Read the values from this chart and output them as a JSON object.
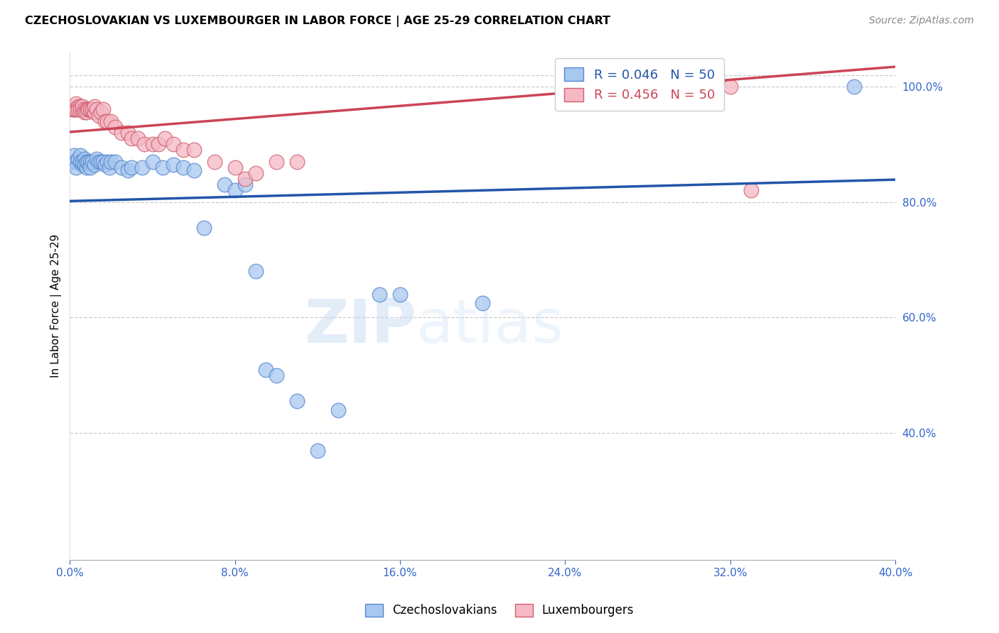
{
  "title": "CZECHOSLOVAKIAN VS LUXEMBOURGER IN LABOR FORCE | AGE 25-29 CORRELATION CHART",
  "source": "Source: ZipAtlas.com",
  "ylabel": "In Labor Force | Age 25-29",
  "legend_blue_label": "Czechoslovakians",
  "legend_pink_label": "Luxembourgers",
  "blue_R": 0.046,
  "blue_N": 50,
  "pink_R": 0.456,
  "pink_N": 50,
  "xlim": [
    0.0,
    0.4
  ],
  "ylim": [
    0.18,
    1.06
  ],
  "yticks": [
    0.4,
    0.6,
    0.8,
    1.0
  ],
  "xticks": [
    0.0,
    0.08,
    0.16,
    0.24,
    0.32,
    0.4
  ],
  "blue_color": "#A8C8F0",
  "pink_color": "#F5B8C4",
  "blue_edge_color": "#5588CC",
  "pink_edge_color": "#D06070",
  "blue_line_color": "#2255AA",
  "pink_line_color": "#CC4455",
  "watermark": "ZIPatlas",
  "background_color": "#ffffff",
  "blue_x": [
    0.001,
    0.002,
    0.003,
    0.003,
    0.004,
    0.005,
    0.005,
    0.006,
    0.006,
    0.007,
    0.007,
    0.008,
    0.008,
    0.009,
    0.01,
    0.01,
    0.011,
    0.012,
    0.013,
    0.014,
    0.015,
    0.016,
    0.017,
    0.018,
    0.019,
    0.02,
    0.022,
    0.025,
    0.028,
    0.03,
    0.035,
    0.04,
    0.045,
    0.05,
    0.055,
    0.06,
    0.065,
    0.075,
    0.08,
    0.085,
    0.09,
    0.095,
    0.1,
    0.11,
    0.12,
    0.13,
    0.15,
    0.16,
    0.2,
    0.38
  ],
  "blue_y": [
    0.87,
    0.88,
    0.87,
    0.86,
    0.875,
    0.88,
    0.87,
    0.865,
    0.87,
    0.875,
    0.865,
    0.86,
    0.87,
    0.87,
    0.87,
    0.86,
    0.87,
    0.865,
    0.875,
    0.87,
    0.87,
    0.87,
    0.865,
    0.87,
    0.86,
    0.87,
    0.87,
    0.86,
    0.855,
    0.86,
    0.86,
    0.87,
    0.86,
    0.865,
    0.86,
    0.855,
    0.755,
    0.83,
    0.82,
    0.83,
    0.68,
    0.51,
    0.5,
    0.455,
    0.37,
    0.44,
    0.64,
    0.64,
    0.625,
    1.0
  ],
  "pink_x": [
    0.001,
    0.002,
    0.002,
    0.003,
    0.003,
    0.004,
    0.004,
    0.005,
    0.005,
    0.006,
    0.006,
    0.007,
    0.007,
    0.008,
    0.008,
    0.009,
    0.009,
    0.01,
    0.01,
    0.011,
    0.011,
    0.012,
    0.012,
    0.013,
    0.014,
    0.015,
    0.016,
    0.017,
    0.018,
    0.02,
    0.022,
    0.025,
    0.028,
    0.03,
    0.033,
    0.036,
    0.04,
    0.043,
    0.046,
    0.05,
    0.055,
    0.06,
    0.07,
    0.08,
    0.085,
    0.09,
    0.1,
    0.11,
    0.32,
    0.33
  ],
  "pink_y": [
    0.96,
    0.96,
    0.96,
    0.97,
    0.96,
    0.965,
    0.96,
    0.965,
    0.96,
    0.96,
    0.965,
    0.96,
    0.955,
    0.96,
    0.955,
    0.96,
    0.96,
    0.96,
    0.96,
    0.96,
    0.96,
    0.955,
    0.965,
    0.96,
    0.95,
    0.955,
    0.96,
    0.94,
    0.94,
    0.94,
    0.93,
    0.92,
    0.92,
    0.91,
    0.91,
    0.9,
    0.9,
    0.9,
    0.91,
    0.9,
    0.89,
    0.89,
    0.87,
    0.86,
    0.84,
    0.85,
    0.87,
    0.87,
    1.0,
    0.82
  ]
}
